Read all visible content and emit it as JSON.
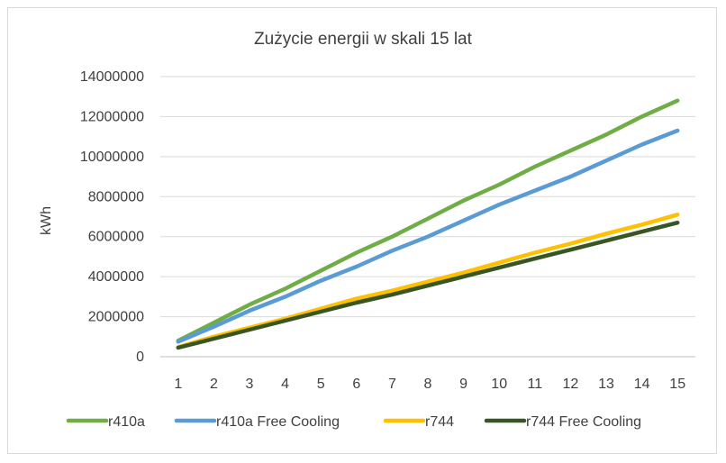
{
  "chart_data": {
    "type": "line",
    "title": "Zużycie energii w skali 15 lat",
    "xlabel": "",
    "ylabel": "kWh",
    "categories": [
      "1",
      "2",
      "3",
      "4",
      "5",
      "6",
      "7",
      "8",
      "9",
      "10",
      "11",
      "12",
      "13",
      "14",
      "15"
    ],
    "ylim": [
      0,
      14000000
    ],
    "yticks": [
      0,
      2000000,
      4000000,
      6000000,
      8000000,
      10000000,
      12000000,
      14000000
    ],
    "ytick_labels": [
      "0",
      "2000000",
      "4000000",
      "6000000",
      "8000000",
      "10000000",
      "12000000",
      "14000000"
    ],
    "grid": true,
    "legend_position": "bottom",
    "series": [
      {
        "name": "r410a",
        "color": "#70ad47",
        "values": [
          800000,
          1700000,
          2600000,
          3400000,
          4300000,
          5200000,
          6000000,
          6900000,
          7800000,
          8600000,
          9500000,
          10300000,
          11100000,
          12000000,
          12800000
        ]
      },
      {
        "name": "r410a Free Cooling",
        "color": "#5b9bd5",
        "values": [
          750000,
          1500000,
          2300000,
          3000000,
          3800000,
          4500000,
          5300000,
          6000000,
          6800000,
          7600000,
          8300000,
          9000000,
          9800000,
          10600000,
          11300000
        ]
      },
      {
        "name": "r744",
        "color": "#ffc000",
        "values": [
          480000,
          1000000,
          1450000,
          1900000,
          2400000,
          2900000,
          3300000,
          3750000,
          4200000,
          4700000,
          5200000,
          5650000,
          6150000,
          6600000,
          7100000
        ]
      },
      {
        "name": "r744 Free Cooling",
        "color": "#375623",
        "values": [
          450000,
          900000,
          1350000,
          1800000,
          2250000,
          2700000,
          3100000,
          3550000,
          4000000,
          4450000,
          4900000,
          5350000,
          5800000,
          6250000,
          6700000
        ]
      }
    ]
  }
}
